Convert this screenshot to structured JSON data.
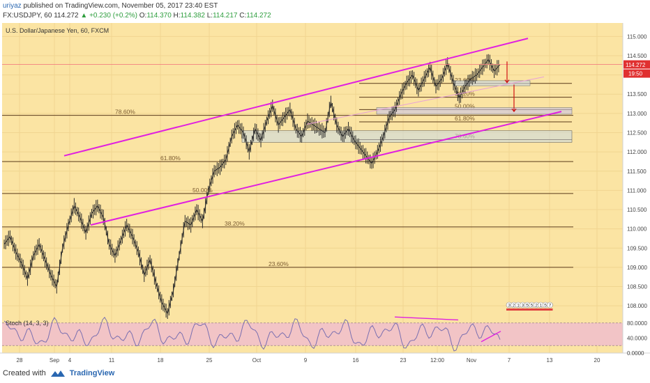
{
  "header": {
    "author": "uriyaz",
    "published_text": "published on TradingView.com, November 05, 2017 23:40 EST",
    "symbol": "FX:USDJPY, 60",
    "last": "114.272",
    "change": "+0.230 (+0.2%)",
    "o_label": "O:",
    "o_value": "114.370",
    "h_label": "H:",
    "h_value": "114.382",
    "l_label": "L:",
    "l_value": "114.217",
    "c_label": "C:",
    "c_value": "114.272"
  },
  "footer": {
    "created_with": "Created with",
    "brand": "TradingView"
  },
  "colors": {
    "background": "#fbe4a3",
    "candle": "#2b2b2b",
    "channel": "#e020e0",
    "fib": "#5a3a1a",
    "stoch_band": "#f2c4c6",
    "stoch_line": "#7a6fb0",
    "price_line": "#f28080",
    "arrow": "#d01010"
  },
  "chart_data": {
    "type": "line",
    "title": "U.S. Dollar/Japanese Yen, 60, FXCM",
    "ylim": [
      107.75,
      115.35
    ],
    "y_ticks": [
      "115.000",
      "114.500",
      "114.000",
      "113.500",
      "113.000",
      "112.500",
      "112.000",
      "111.500",
      "111.000",
      "110.500",
      "110.000",
      "109.500",
      "109.000",
      "108.500",
      "108.000"
    ],
    "x_ticks": [
      "28",
      "Sep",
      "4",
      "11",
      "18",
      "25",
      "Oct",
      "9",
      "16",
      "23",
      "12:00",
      "Nov",
      "7",
      "13",
      "20"
    ],
    "series": [
      {
        "y": [
          109.6,
          109.8,
          109.4,
          109.1,
          108.7,
          109.3,
          109.6,
          109.2,
          108.8,
          108.5,
          109.5,
          110.1,
          110.6,
          110.3,
          109.9,
          110.4,
          110.6,
          110.3,
          109.6,
          109.3,
          109.7,
          110.1,
          109.8,
          109.4,
          108.8,
          109.2,
          108.6,
          108.1,
          107.8,
          108.4,
          109.3,
          110.2,
          110.1,
          110.5,
          110.2,
          111.0,
          111.5,
          111.6,
          111.8,
          112.4,
          112.7,
          112.5,
          112.0,
          112.6,
          112.3,
          112.8,
          113.2,
          112.7,
          112.9,
          113.1,
          112.6,
          112.4,
          112.8,
          112.7,
          112.6,
          112.5,
          113.3,
          112.7,
          112.4,
          112.6,
          112.3,
          112.1,
          111.9,
          111.7,
          112.0,
          112.4,
          112.9,
          113.1,
          113.5,
          113.8,
          114.0,
          113.6,
          113.9,
          114.2,
          113.7,
          113.9,
          114.3,
          113.8,
          113.4,
          113.7,
          113.9,
          114.0,
          114.2,
          114.4,
          114.1,
          114.27
        ]
      }
    ],
    "channel": {
      "upper": [
        [
          "Sep 4",
          111.9
        ],
        [
          "Nov 9",
          114.95
        ]
      ],
      "lower": [
        [
          "Sep 4",
          110.1
        ],
        [
          "Nov 14",
          113.05
        ]
      ]
    },
    "fib_levels": [
      {
        "label": "78.60%",
        "value": 112.95
      },
      {
        "label": "61.80%",
        "value": 111.75
      },
      {
        "label": "50.00%",
        "value": 110.92
      },
      {
        "label": "38.20%",
        "value": 110.05
      },
      {
        "label": "23.60%",
        "value": 109.0
      },
      {
        "label": "23.60%",
        "value": 113.78
      },
      {
        "label": "38.20%",
        "value": 113.42
      },
      {
        "label": "50.00%",
        "value": 113.1
      },
      {
        "label": "61.80%",
        "value": 112.78
      },
      {
        "label": "78.60%",
        "value": 112.32
      }
    ],
    "current_price": "114.272",
    "countdown": "19:50",
    "events": [
      "3",
      "2",
      "1",
      "3",
      "5",
      "5",
      "2",
      "1",
      "5",
      "7"
    ],
    "indicator": {
      "name": "Stoch (14, 3, 3)",
      "ylim": [
        0,
        100
      ],
      "y_ticks": [
        "80.0000",
        "40.0000",
        "0.0000"
      ],
      "band": [
        20,
        80
      ]
    }
  }
}
